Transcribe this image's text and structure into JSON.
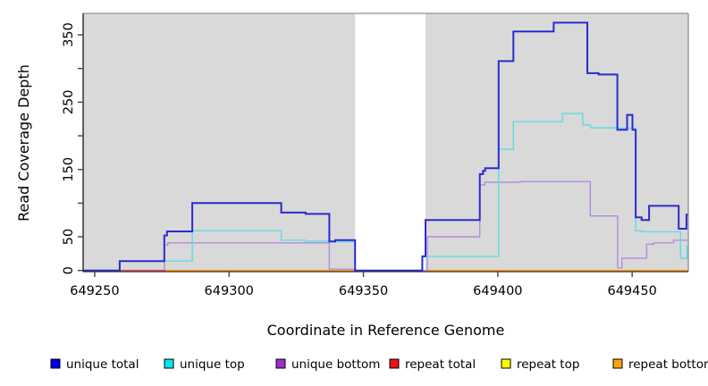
{
  "chart_data": {
    "type": "line",
    "subtype": "step",
    "title": "",
    "xlabel": "Coordinate in Reference Genome",
    "ylabel": "Read Coverage Depth",
    "xlim": [
      649245.7,
      649470.9
    ],
    "ylim": [
      0,
      381.8
    ],
    "grid": "off",
    "plot_bg": "#d9d9d9",
    "masked_region": {
      "x_start": 649346.9,
      "x_end": 649373.1,
      "color": "#ffffff"
    },
    "x_ticks": [
      {
        "value": 649250,
        "label": "649250"
      },
      {
        "value": 649300,
        "label": "649300"
      },
      {
        "value": 649350,
        "label": "649350"
      },
      {
        "value": 649400,
        "label": "649400"
      },
      {
        "value": 649450,
        "label": "649450"
      }
    ],
    "y_ticks": [
      {
        "value": 0,
        "label": "0"
      },
      {
        "value": 50,
        "label": "50"
      },
      {
        "value": 100,
        "label": ""
      },
      {
        "value": 150,
        "label": "150"
      },
      {
        "value": 200,
        "label": ""
      },
      {
        "value": 250,
        "label": "250"
      },
      {
        "value": 300,
        "label": ""
      },
      {
        "value": 350,
        "label": "350"
      }
    ],
    "legend_position": "bottom",
    "legend": [
      {
        "label": "unique total",
        "color": "#0000ee"
      },
      {
        "label": "unique top",
        "color": "#00e6ee"
      },
      {
        "label": "unique bottom",
        "color": "#9932cc"
      },
      {
        "label": "repeat total",
        "color": "#ee1111"
      },
      {
        "label": "repeat top",
        "color": "#ffff00"
      },
      {
        "label": "repeat bottom",
        "color": "#ffa500"
      }
    ],
    "series": [
      {
        "name": "unique bottom",
        "line_color": "#b28ce0",
        "line_width": 1.4,
        "segments": [
          [
            [
              649245.7,
              0
            ],
            [
              649275.9,
              0
            ],
            [
              649275.9,
              38
            ],
            [
              649277.2,
              38
            ],
            [
              649277.2,
              41
            ],
            [
              649337.3,
              41
            ],
            [
              649337.3,
              2
            ],
            [
              649346.9,
              2
            ],
            [
              649346.9,
              0
            ],
            [
              649373.8,
              0
            ],
            [
              649373.8,
              50
            ],
            [
              649393.3,
              50
            ],
            [
              649393.3,
              127
            ],
            [
              649395.2,
              127
            ],
            [
              649395.2,
              131
            ],
            [
              649408.3,
              131
            ],
            [
              649408.3,
              132
            ],
            [
              649434.4,
              132
            ],
            [
              649434.4,
              81
            ],
            [
              649444.6,
              81
            ],
            [
              649444.6,
              4
            ],
            [
              649446.2,
              4
            ],
            [
              649446.2,
              18
            ],
            [
              649455.4,
              18
            ],
            [
              649455.4,
              39
            ],
            [
              649458,
              39
            ],
            [
              649458,
              41
            ],
            [
              649465.4,
              41
            ],
            [
              649465.4,
              45
            ],
            [
              649470.9,
              45
            ]
          ]
        ]
      },
      {
        "name": "repeat total",
        "line_color": "#e2506a",
        "line_width": 1.6,
        "segments": [
          [
            [
              649259.3,
              0
            ],
            [
              649276.3,
              0
            ]
          ]
        ]
      },
      {
        "name": "repeat top",
        "line_color": "#ffff00",
        "line_width": 1.4,
        "segments": [
          [
            [
              649276.3,
              0
            ],
            [
              649346.9,
              0
            ]
          ],
          [
            [
              649373.8,
              0
            ],
            [
              649470.9,
              0
            ]
          ]
        ]
      },
      {
        "name": "repeat bottom",
        "line_color": "#ff9f1c",
        "line_width": 1.6,
        "segments": [
          [
            [
              649276.3,
              0
            ],
            [
              649346.9,
              0
            ]
          ],
          [
            [
              649373.8,
              0
            ],
            [
              649470.9,
              0
            ]
          ]
        ]
      },
      {
        "name": "unique top",
        "line_color": "#5cdde4",
        "line_width": 1.4,
        "segments": [
          [
            [
              649245.7,
              0
            ],
            [
              649259.3,
              0
            ],
            [
              649259.3,
              14
            ],
            [
              649286.3,
              14
            ],
            [
              649286.3,
              59
            ],
            [
              649319.4,
              59
            ],
            [
              649319.4,
              45
            ],
            [
              649328.5,
              45
            ],
            [
              649328.5,
              43.5
            ],
            [
              649337.3,
              43.5
            ],
            [
              649337.3,
              42.5
            ],
            [
              649346.9,
              42.5
            ],
            [
              649346.9,
              0
            ],
            [
              649371.9,
              0
            ],
            [
              649371.9,
              21
            ],
            [
              649400.3,
              21
            ],
            [
              649400.3,
              180
            ],
            [
              649405.8,
              180
            ],
            [
              649405.8,
              221
            ],
            [
              649424,
              221
            ],
            [
              649424,
              233
            ],
            [
              649431.6,
              233
            ],
            [
              649431.6,
              216
            ],
            [
              649434.5,
              216
            ],
            [
              649434.5,
              212
            ],
            [
              649444.5,
              212
            ],
            [
              649444.5,
              211.5
            ],
            [
              649451.3,
              211.5
            ],
            [
              649451.3,
              59
            ],
            [
              649453.5,
              59
            ],
            [
              649453.5,
              57.5
            ],
            [
              649468,
              57.5
            ],
            [
              649468,
              18
            ],
            [
              649470.4,
              18
            ],
            [
              649470.4,
              36
            ],
            [
              649470.9,
              36
            ]
          ]
        ]
      },
      {
        "name": "unique total",
        "line_color": "#2a2ad0",
        "line_width": 2,
        "segments": [
          [
            [
              649245.7,
              0
            ],
            [
              649259.3,
              0
            ],
            [
              649259.3,
              14
            ],
            [
              649275.9,
              14
            ],
            [
              649275.9,
              52
            ],
            [
              649276.9,
              52
            ],
            [
              649276.9,
              58
            ],
            [
              649286.3,
              58
            ],
            [
              649286.3,
              100
            ],
            [
              649319.4,
              100
            ],
            [
              649319.4,
              86
            ],
            [
              649328.5,
              86
            ],
            [
              649328.5,
              84
            ],
            [
              649337.3,
              84
            ],
            [
              649337.3,
              43
            ],
            [
              649339.5,
              43
            ],
            [
              649339.5,
              45
            ],
            [
              649346.9,
              45
            ],
            [
              649346.9,
              0
            ],
            [
              649371.9,
              0
            ],
            [
              649371.9,
              21
            ],
            [
              649373.1,
              21
            ],
            [
              649373.1,
              75
            ],
            [
              649393.3,
              75
            ],
            [
              649393.3,
              143
            ],
            [
              649394.5,
              143
            ],
            [
              649394.5,
              148
            ],
            [
              649395.3,
              148
            ],
            [
              649395.3,
              152
            ],
            [
              649400.3,
              152
            ],
            [
              649400.3,
              311
            ],
            [
              649405.8,
              311
            ],
            [
              649405.8,
              355
            ],
            [
              649420.8,
              355
            ],
            [
              649420.8,
              368
            ],
            [
              649433.3,
              368
            ],
            [
              649433.3,
              293
            ],
            [
              649437.5,
              293
            ],
            [
              649437.5,
              291
            ],
            [
              649444.5,
              291
            ],
            [
              649444.5,
              209
            ],
            [
              649448.1,
              209
            ],
            [
              649448.1,
              231
            ],
            [
              649450.1,
              231
            ],
            [
              649450.1,
              209
            ],
            [
              649451.3,
              209
            ],
            [
              649451.3,
              79
            ],
            [
              649453.5,
              79
            ],
            [
              649453.5,
              75
            ],
            [
              649456.3,
              75
            ],
            [
              649456.3,
              96
            ],
            [
              649467.3,
              96
            ],
            [
              649467.3,
              62
            ],
            [
              649470.2,
              62
            ],
            [
              649470.2,
              83
            ],
            [
              649470.9,
              83
            ]
          ]
        ]
      }
    ]
  }
}
